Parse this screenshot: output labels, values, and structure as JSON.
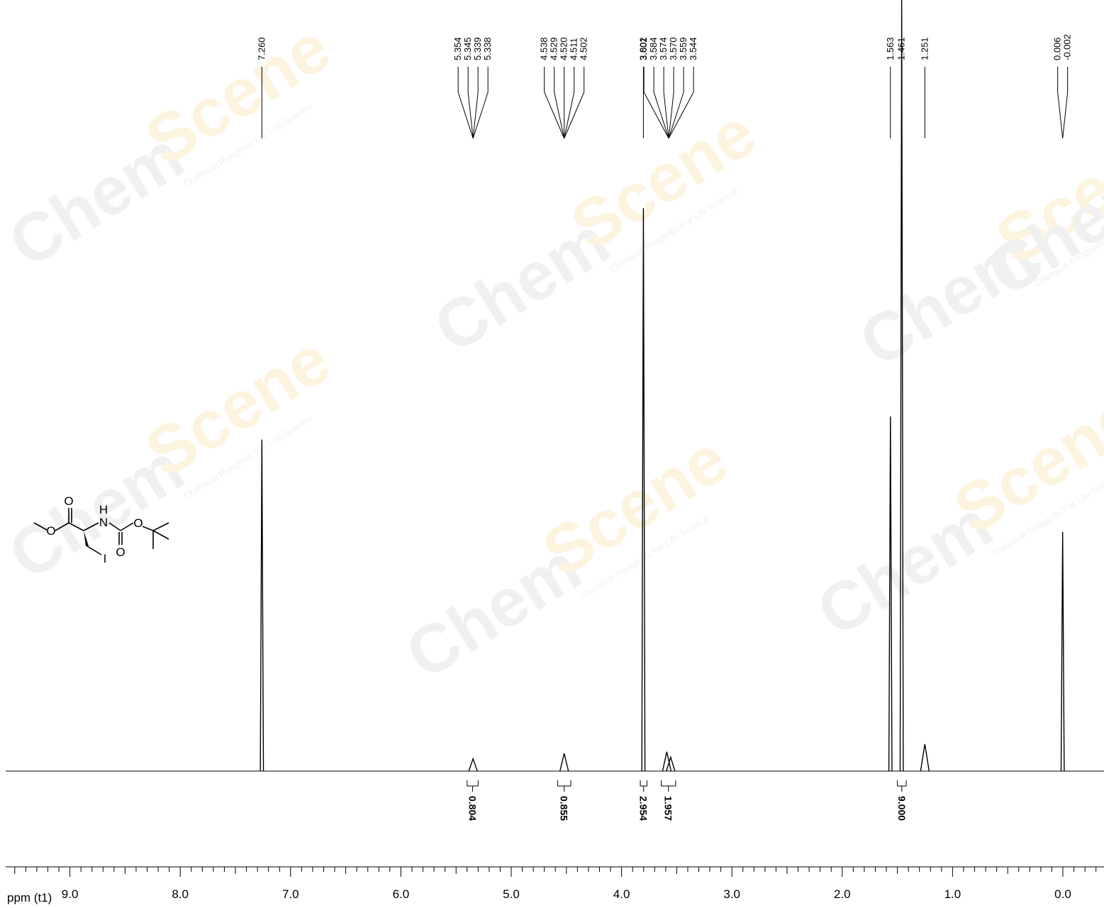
{
  "watermark": {
    "brand": "Chem",
    "brand2": "Scene",
    "tagline": "Chemical Reagents For Life Science"
  },
  "structure": {
    "atoms": [
      "O",
      "O",
      "N",
      "H",
      "O",
      "O",
      "I"
    ]
  },
  "chart_data": {
    "type": "line",
    "title": "",
    "xlabel": "ppm (t1)",
    "ylabel": "",
    "xlim": [
      9.7,
      -0.4
    ],
    "x_reversed": true,
    "grid": false,
    "ticks": [
      "9.0",
      "8.0",
      "7.0",
      "6.0",
      "5.0",
      "4.0",
      "3.0",
      "2.0",
      "1.0",
      "0.0"
    ],
    "peaks": [
      {
        "ppm": 7.26,
        "height": 0.43
      },
      {
        "ppm": 5.346,
        "height": 0.016
      },
      {
        "ppm": 4.52,
        "height": 0.023
      },
      {
        "ppm": 3.802,
        "height": 0.73
      },
      {
        "ppm": 3.59,
        "height": 0.025
      },
      {
        "ppm": 3.555,
        "height": 0.018
      },
      {
        "ppm": 1.563,
        "height": 0.46
      },
      {
        "ppm": 1.461,
        "height": 1.0
      },
      {
        "ppm": 1.251,
        "height": 0.035
      },
      {
        "ppm": 0.002,
        "height": 0.31
      }
    ],
    "peak_label_groups": [
      {
        "labels": [
          "7.260"
        ],
        "ppm_range": [
          7.26,
          7.26
        ]
      },
      {
        "labels": [
          "5.354",
          "5.345",
          "5.339",
          "5.338"
        ],
        "ppm_range": [
          5.354,
          5.338
        ]
      },
      {
        "labels": [
          "4.538",
          "4.529",
          "4.520",
          "4.511",
          "4.502"
        ],
        "ppm_range": [
          4.538,
          4.502
        ]
      },
      {
        "labels": [
          "3.802"
        ],
        "ppm_range": [
          3.802,
          3.802
        ]
      },
      {
        "labels": [
          "3.601",
          "3.584",
          "3.574",
          "3.570",
          "3.559",
          "3.544"
        ],
        "ppm_range": [
          3.601,
          3.544
        ]
      },
      {
        "labels": [
          "1.563"
        ],
        "ppm_range": [
          1.563,
          1.563
        ]
      },
      {
        "labels": [
          "1.461"
        ],
        "ppm_range": [
          1.461,
          1.461
        ]
      },
      {
        "labels": [
          "1.251"
        ],
        "ppm_range": [
          1.251,
          1.251
        ]
      },
      {
        "labels": [
          "0.006",
          "-0.002"
        ],
        "ppm_range": [
          0.006,
          -0.002
        ]
      }
    ],
    "integrals": [
      {
        "value": "0.804",
        "from": 5.4,
        "to": 5.3
      },
      {
        "value": "0.855",
        "from": 4.58,
        "to": 4.46
      },
      {
        "value": "2.954",
        "from": 3.83,
        "to": 3.77
      },
      {
        "value": "1.957",
        "from": 3.64,
        "to": 3.51
      },
      {
        "value": "9.000",
        "from": 1.5,
        "to": 1.42
      }
    ]
  }
}
